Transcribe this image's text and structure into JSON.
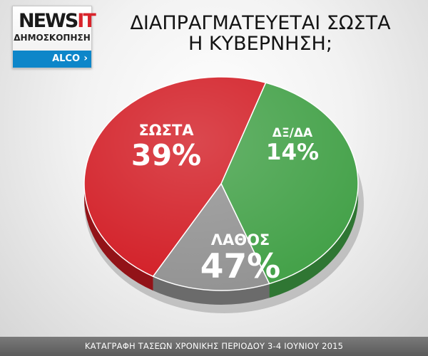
{
  "logo": {
    "brand_main": "NEWS",
    "brand_accent": "IT",
    "subtitle": "ΔΗΜΟΣΚΟΠΗΣΗ",
    "pollster": "ALCO",
    "chevron_icon": "chevron-right-icon",
    "brand_color": "#0d86c9",
    "accent_color": "#d8242b"
  },
  "title_lines": [
    "ΔΙΑΠΡΑΓΜΑΤΕΥΕΤΑΙ ΣΩΣΤΑ",
    "Η ΚΥΒΕΡΝΗΣΗ;"
  ],
  "footer": "ΚΑΤΑΓΡΑΦΗ ΤΑΣΕΩΝ ΧΡΟΝΙΚΗΣ ΠΕΡΙΟΔΟΥ 3-4 ΙΟΥΝΙΟΥ 2015",
  "chart_data": {
    "type": "pie",
    "title": "ΔΙΑΠΡΑΓΜΑΤΕΥΕΤΑΙ ΣΩΣΤΑ Η ΚΥΒΕΡΝΗΣΗ;",
    "unit": "%",
    "slices": [
      {
        "label": "ΣΩΣΤΑ",
        "value": 39,
        "display": "39%",
        "color": "#45a24a",
        "side_color": "#2f7633"
      },
      {
        "label": "ΔΞ/ΔΑ",
        "value": 14,
        "display": "14%",
        "color": "#949494",
        "side_color": "#6b6b6b"
      },
      {
        "label": "ΛΑΘΟΣ",
        "value": 47,
        "display": "47%",
        "color": "#d32028",
        "side_color": "#921318"
      }
    ],
    "legend": "none"
  }
}
